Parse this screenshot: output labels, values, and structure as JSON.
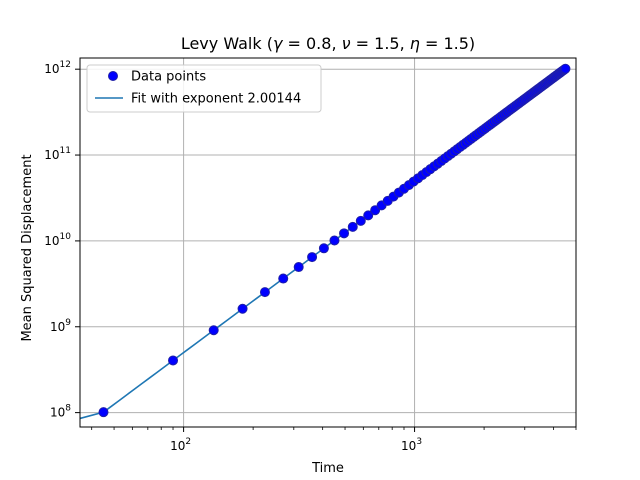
{
  "chart_data": {
    "type": "line",
    "title_parts": [
      "Levy Walk (",
      "γ",
      " = 0.8, ",
      "ν",
      " =  1.5, ",
      "η",
      " =  1.5)"
    ],
    "xlabel": "Time",
    "ylabel": "Mean Squared Displacement",
    "x_scale": "log",
    "y_scale": "log",
    "xlim": [
      35.6,
      5000
    ],
    "ylim": [
      68000000,
      1350000000000
    ],
    "grid": true,
    "legend_position": "top-left",
    "x_ticks": [
      {
        "value": 100,
        "base": "10",
        "exp": "2"
      },
      {
        "value": 1000,
        "base": "10",
        "exp": "3"
      }
    ],
    "y_ticks": [
      {
        "value": 100000000,
        "base": "10",
        "exp": "8"
      },
      {
        "value": 1000000000,
        "base": "10",
        "exp": "9"
      },
      {
        "value": 10000000000,
        "base": "10",
        "exp": "10"
      },
      {
        "value": 100000000000,
        "base": "10",
        "exp": "11"
      },
      {
        "value": 1000000000000,
        "base": "10",
        "exp": "12"
      }
    ],
    "series": [
      {
        "name": "Data points",
        "style": "markers",
        "color": "#0000ff",
        "edge_color": "#1f1fa8",
        "x_start": 45,
        "x_step": 45,
        "x_end": 4500,
        "y_function": "msd = 50000 * t^2"
      },
      {
        "name": "Fit with exponent 2.00144",
        "style": "line",
        "color": "#1f77b4",
        "exponent": 2.00144,
        "prefactor": 50000,
        "segments": [
          [
            35.6,
            45
          ],
          [
            45,
            4500
          ]
        ],
        "start_value": 85500000
      }
    ],
    "colors": {
      "text": "#000000",
      "grid": "#b0b0b0",
      "legend_border": "#cccccc"
    }
  }
}
